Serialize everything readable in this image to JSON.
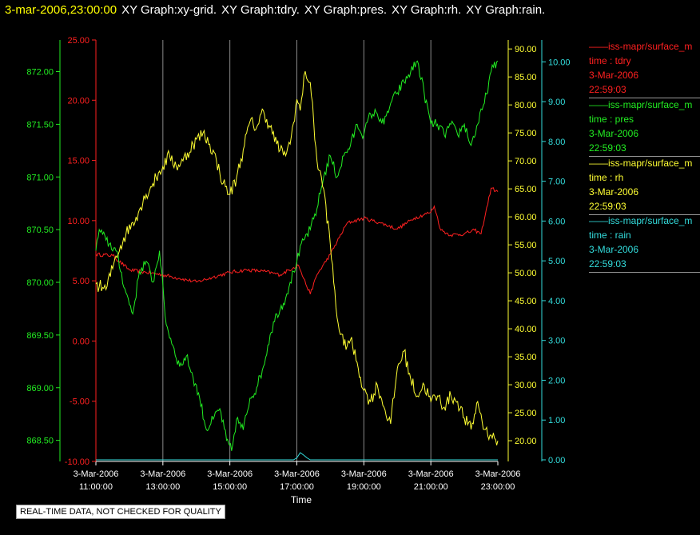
{
  "header": {
    "timestamp": "3-mar-2006,23:00:00",
    "titles": [
      "XY Graph:xy-grid.",
      "XY Graph:tdry.",
      "XY Graph:pres.",
      "XY Graph:rh.",
      "XY Graph:rain."
    ]
  },
  "legend": [
    {
      "source": "iss-mapr/surface_m",
      "label": "time : tdry",
      "date": "3-Mar-2006",
      "time": "22:59:03",
      "color": "#ff2020"
    },
    {
      "source": "iss-mapr/surface_m",
      "label": "time : pres",
      "date": "3-Mar-2006",
      "time": "22:59:03",
      "color": "#22ee22"
    },
    {
      "source": "iss-mapr/surface_m",
      "label": "time : rh",
      "date": "3-Mar-2006",
      "time": "22:59:03",
      "color": "#ffff33"
    },
    {
      "source": "iss-mapr/surface_m",
      "label": "time : rain",
      "date": "3-Mar-2006",
      "time": "22:59:03",
      "color": "#33dddd"
    }
  ],
  "note": "REAL-TIME DATA, NOT CHECKED FOR QUALITY",
  "chart_data": {
    "type": "line",
    "xlabel": "Time",
    "xlim": [
      11,
      23
    ],
    "x_ticks": [
      {
        "value": 11,
        "date": "3-Mar-2006",
        "time": "11:00:00"
      },
      {
        "value": 13,
        "date": "3-Mar-2006",
        "time": "13:00:00"
      },
      {
        "value": 15,
        "date": "3-Mar-2006",
        "time": "15:00:00"
      },
      {
        "value": 17,
        "date": "3-Mar-2006",
        "time": "17:00:00"
      },
      {
        "value": 19,
        "date": "3-Mar-2006",
        "time": "19:00:00"
      },
      {
        "value": 21,
        "date": "3-Mar-2006",
        "time": "21:00:00"
      },
      {
        "value": 23,
        "date": "3-Mar-2006",
        "time": "23:00:00"
      }
    ],
    "axes": {
      "pres": {
        "min": 868.3,
        "max": 872.3,
        "ticks": [
          "868.50",
          "869.00",
          "869.50",
          "870.00",
          "870.50",
          "871.00",
          "871.50",
          "872.00"
        ],
        "color": "#22ee22"
      },
      "tdry": {
        "min": -10,
        "max": 25,
        "ticks": [
          "-10.00",
          "-5.00",
          "0.00",
          "5.00",
          "10.00",
          "15.00",
          "20.00",
          "25.00"
        ],
        "color": "#ff2020"
      },
      "rh": {
        "min": 16.3,
        "max": 91.6,
        "ticks": [
          "20.00",
          "25.00",
          "30.00",
          "35.00",
          "40.00",
          "45.00",
          "50.00",
          "55.00",
          "60.00",
          "65.00",
          "70.00",
          "75.00",
          "80.00",
          "85.00",
          "90.00"
        ],
        "color": "#ffff33"
      },
      "rain": {
        "min": -0.04,
        "max": 10.55,
        "ticks": [
          "0.00",
          "1.00",
          "2.00",
          "3.00",
          "4.00",
          "5.00",
          "6.00",
          "7.00",
          "8.00",
          "9.00",
          "10.00"
        ],
        "color": "#33dddd"
      }
    },
    "series": [
      {
        "name": "tdry",
        "axis": "tdry",
        "color": "#ff2020",
        "x": [
          11,
          11.5,
          12,
          12.5,
          13,
          13.5,
          14,
          14.5,
          15,
          15.5,
          16,
          16.5,
          16.9,
          17.05,
          17.2,
          17.4,
          17.6,
          18,
          18.5,
          19,
          19.5,
          20,
          20.5,
          21,
          21.1,
          21.3,
          21.6,
          22,
          22.3,
          22.5,
          22.8,
          23
        ],
        "y": [
          7.2,
          7.1,
          5.9,
          5.7,
          5.5,
          5.2,
          4.9,
          5.3,
          5.7,
          5.9,
          5.8,
          5.5,
          6.1,
          6.3,
          5.2,
          3.9,
          5.5,
          7.2,
          9.8,
          10.2,
          9.8,
          9.3,
          10.2,
          10.7,
          11.2,
          9.2,
          8.8,
          8.9,
          9.2,
          8.9,
          12.7,
          12.4
        ]
      },
      {
        "name": "pres",
        "axis": "pres",
        "color": "#22ee22",
        "x": [
          11,
          11.1,
          11.3,
          11.6,
          11.9,
          12.1,
          12.3,
          12.5,
          12.7,
          12.9,
          13.1,
          13.3,
          13.5,
          13.7,
          13.9,
          14.1,
          14.3,
          14.5,
          14.7,
          14.9,
          15.05,
          15.2,
          15.4,
          15.6,
          15.8,
          16,
          16.2,
          16.4,
          16.6,
          16.8,
          17,
          17.2,
          17.4,
          17.6,
          17.8,
          18,
          18.2,
          18.4,
          18.6,
          18.8,
          19,
          19.2,
          19.4,
          19.6,
          19.8,
          20,
          20.2,
          20.4,
          20.6,
          20.8,
          21,
          21.2,
          21.4,
          21.6,
          21.8,
          22,
          22.2,
          22.4,
          22.6,
          22.8,
          23
        ],
        "y": [
          870.3,
          870.5,
          870.4,
          870.3,
          869.9,
          869.7,
          870.1,
          870.2,
          870.0,
          870.3,
          869.6,
          869.4,
          869.2,
          869.3,
          869.1,
          868.9,
          868.6,
          868.7,
          868.8,
          868.5,
          868.4,
          868.7,
          868.6,
          868.9,
          869.0,
          869.2,
          869.5,
          869.7,
          869.8,
          870.0,
          870.2,
          870.4,
          870.5,
          870.7,
          871.0,
          871.2,
          871.0,
          871.2,
          871.3,
          871.5,
          871.4,
          871.6,
          871.6,
          871.5,
          871.7,
          871.8,
          871.9,
          872.0,
          872.1,
          871.8,
          871.5,
          871.5,
          871.4,
          871.5,
          871.4,
          871.5,
          871.3,
          871.5,
          871.7,
          872.0,
          872.1
        ]
      },
      {
        "name": "rh",
        "axis": "rh",
        "color": "#ffff33",
        "x": [
          11,
          11.3,
          11.6,
          11.9,
          12.2,
          12.5,
          12.8,
          13,
          13.2,
          13.4,
          13.6,
          13.9,
          14.2,
          14.4,
          14.6,
          14.8,
          15,
          15.2,
          15.4,
          15.6,
          15.8,
          16,
          16.2,
          16.4,
          16.6,
          16.8,
          17,
          17.1,
          17.25,
          17.4,
          17.6,
          17.8,
          18,
          18.2,
          18.4,
          18.6,
          18.8,
          19,
          19.2,
          19.4,
          19.6,
          19.8,
          20,
          20.2,
          20.4,
          20.6,
          20.8,
          21,
          21.2,
          21.4,
          21.6,
          21.8,
          22,
          22.2,
          22.4,
          22.6,
          22.8,
          23
        ],
        "y": [
          48,
          47,
          53,
          57,
          60,
          64,
          67,
          69,
          71,
          69,
          70,
          73,
          75,
          73,
          70,
          66,
          64,
          67,
          72,
          77,
          76,
          79,
          76,
          73,
          71,
          73,
          81,
          79,
          86,
          84,
          70,
          65,
          55,
          42,
          37,
          38,
          34,
          29,
          27,
          30,
          26,
          23,
          33,
          36,
          31,
          28,
          30,
          27,
          28,
          26,
          28,
          27,
          24,
          22,
          27,
          22,
          21,
          20
        ]
      },
      {
        "name": "rain",
        "axis": "rain",
        "color": "#33dddd",
        "x": [
          11,
          16.9,
          17.0,
          17.1,
          17.2,
          17.3,
          17.4,
          23
        ],
        "y": [
          0,
          0,
          0.05,
          0.18,
          0.12,
          0.05,
          0,
          0
        ]
      }
    ]
  }
}
